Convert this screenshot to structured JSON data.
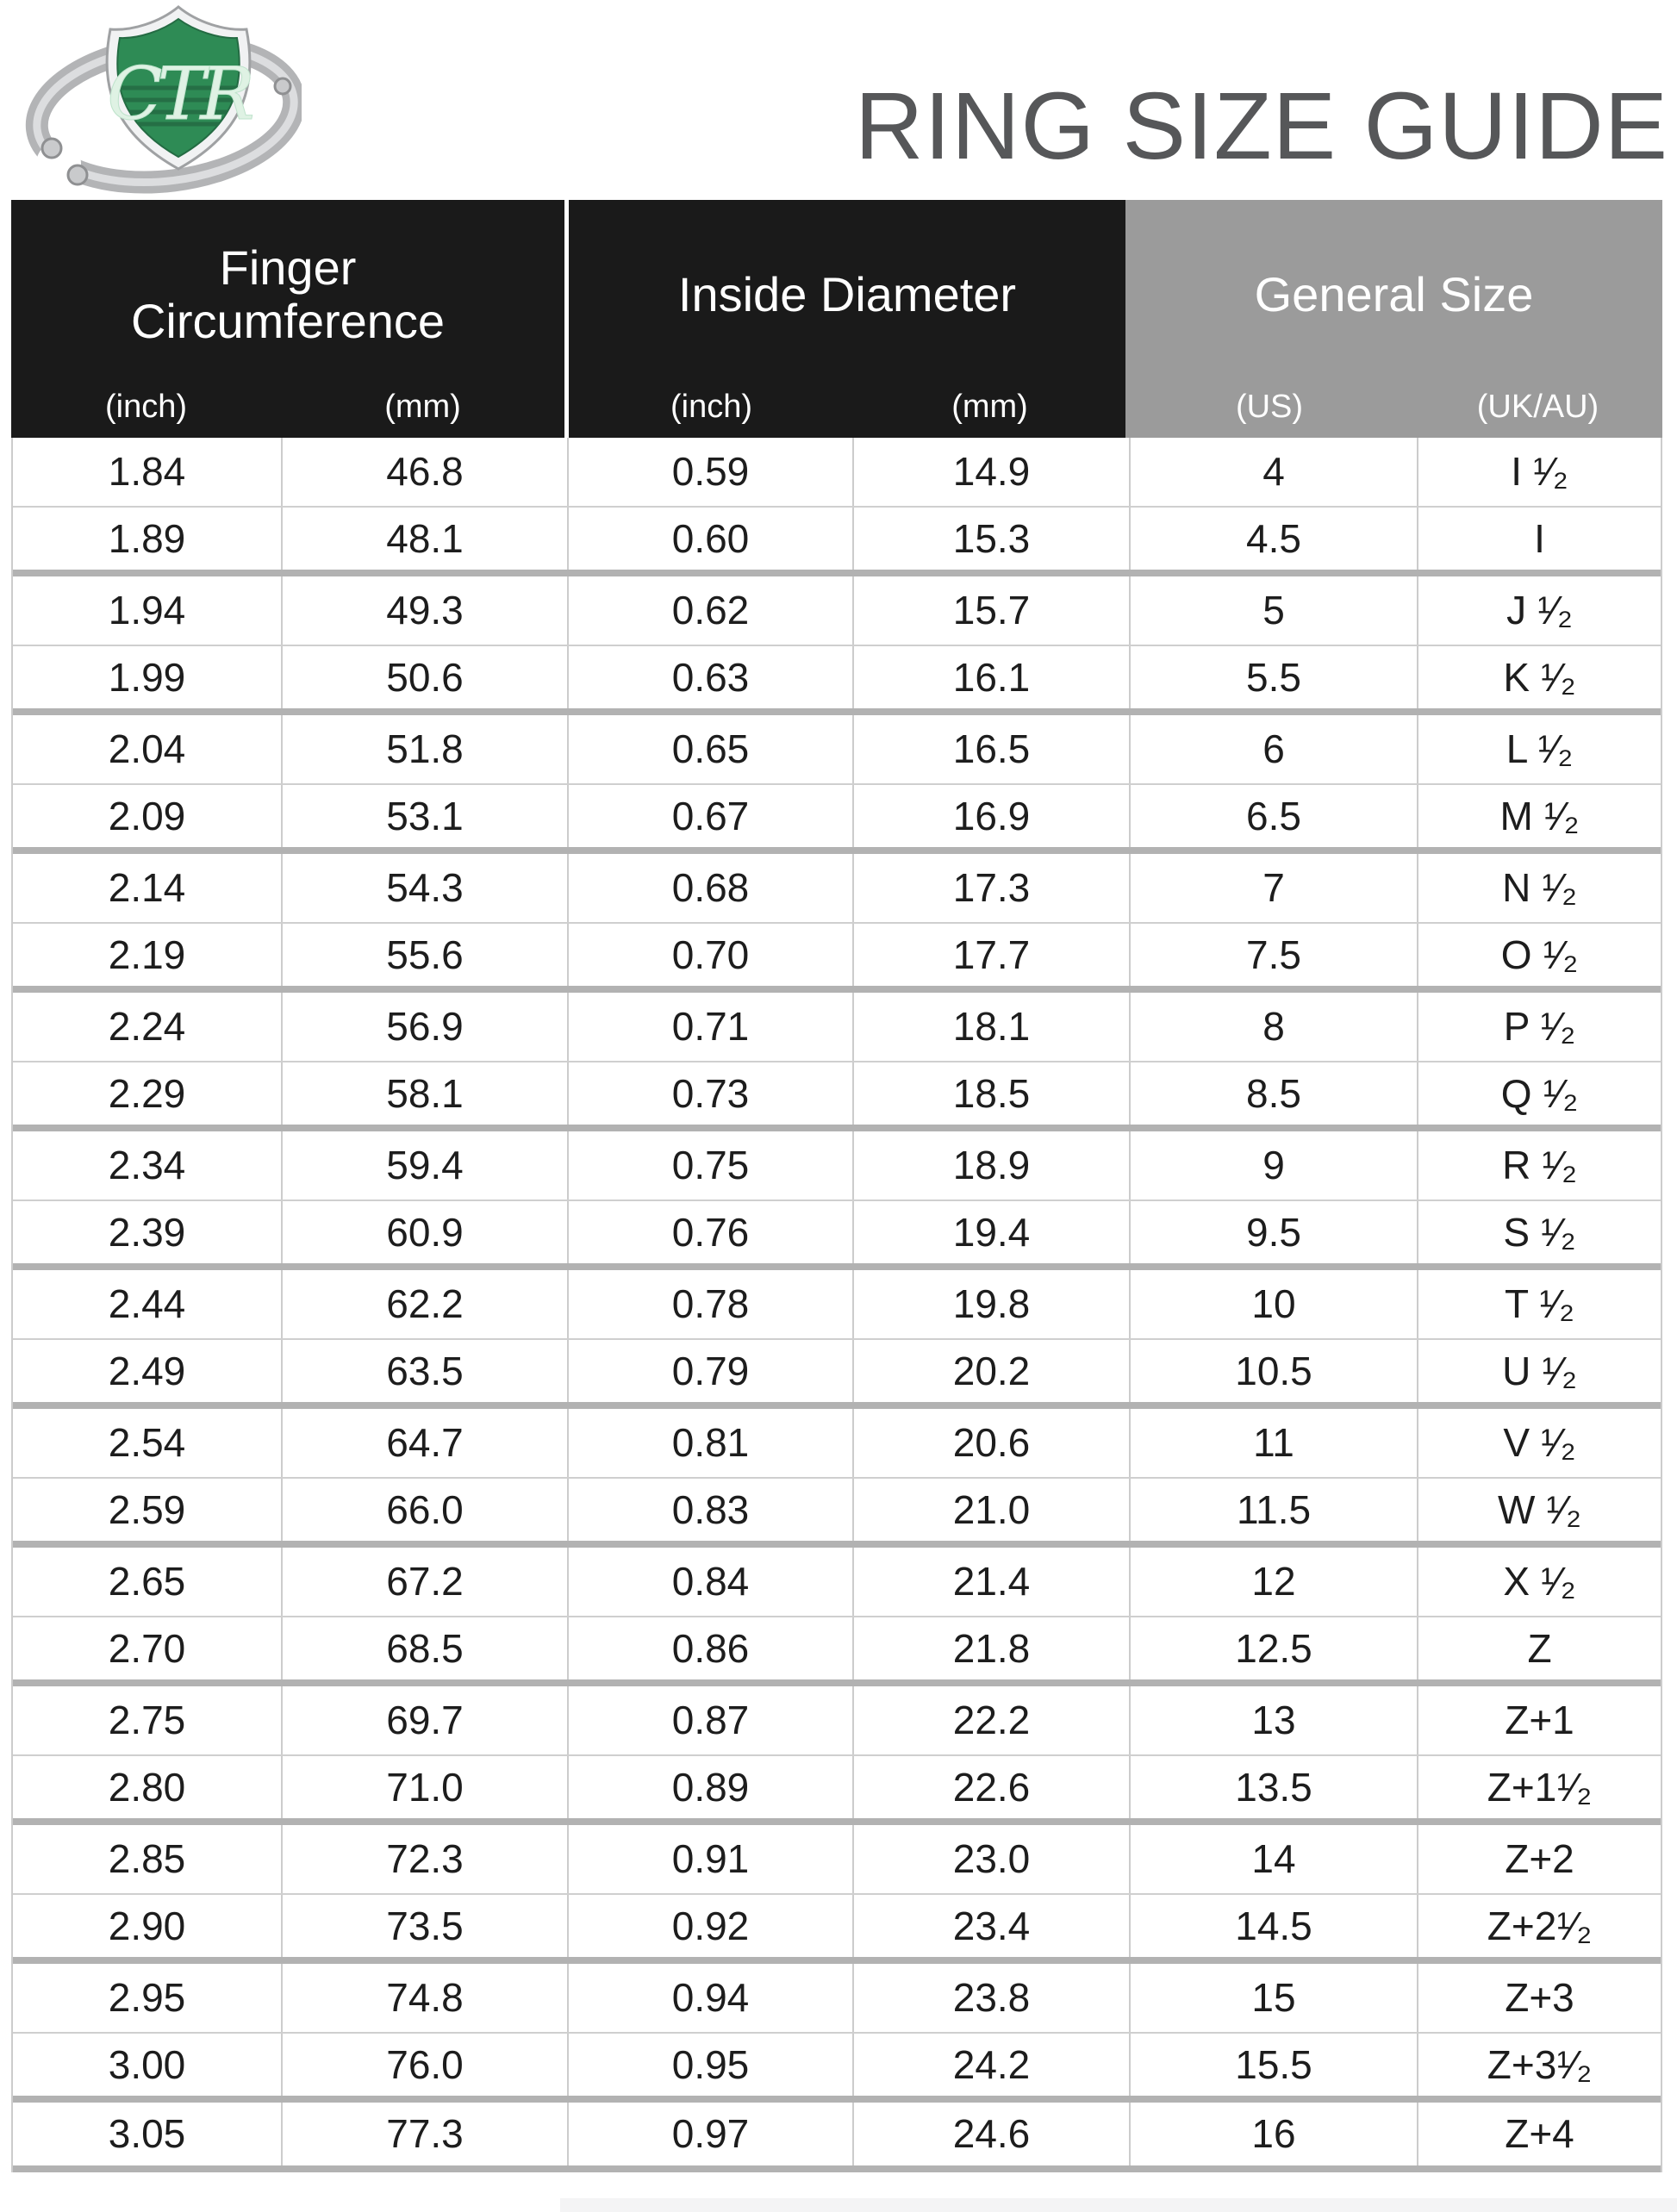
{
  "header": {
    "title": "RING SIZE GUIDE"
  },
  "logo": {
    "monogram": "CTR"
  },
  "colors": {
    "header_black": "#1a1a1a",
    "header_gray": "#9b9b9b",
    "title_gray": "#565759",
    "shield_green": "#2e8b55",
    "line_thin": "#cfcfcf",
    "line_thick": "#b2b2b2"
  },
  "table": {
    "groups": [
      {
        "label": "Finger\nCircumference",
        "units": [
          "(inch)",
          "(mm)"
        ],
        "bg": "#1a1a1a"
      },
      {
        "label": "Inside Diameter",
        "units": [
          "(inch)",
          "(mm)"
        ],
        "bg": "#1a1a1a"
      },
      {
        "label": "General Size",
        "units": [
          "(US)",
          "(UK/AU)"
        ],
        "bg": "#9b9b9b"
      }
    ],
    "columns": [
      "circumference-inch",
      "circumference-mm",
      "diameter-inch",
      "diameter-mm",
      "size-us",
      "size-uk-au"
    ],
    "rows": [
      [
        "1.84",
        "46.8",
        "0.59",
        "14.9",
        "4",
        "I ¹⁄₂"
      ],
      [
        "1.89",
        "48.1",
        "0.60",
        "15.3",
        "4.5",
        "I"
      ],
      [
        "1.94",
        "49.3",
        "0.62",
        "15.7",
        "5",
        "J ¹⁄₂"
      ],
      [
        "1.99",
        "50.6",
        "0.63",
        "16.1",
        "5.5",
        "K ¹⁄₂"
      ],
      [
        "2.04",
        "51.8",
        "0.65",
        "16.5",
        "6",
        "L ¹⁄₂"
      ],
      [
        "2.09",
        "53.1",
        "0.67",
        "16.9",
        "6.5",
        "M ¹⁄₂"
      ],
      [
        "2.14",
        "54.3",
        "0.68",
        "17.3",
        "7",
        "N ¹⁄₂"
      ],
      [
        "2.19",
        "55.6",
        "0.70",
        "17.7",
        "7.5",
        "O ¹⁄₂"
      ],
      [
        "2.24",
        "56.9",
        "0.71",
        "18.1",
        "8",
        "P ¹⁄₂"
      ],
      [
        "2.29",
        "58.1",
        "0.73",
        "18.5",
        "8.5",
        "Q ¹⁄₂"
      ],
      [
        "2.34",
        "59.4",
        "0.75",
        "18.9",
        "9",
        "R ¹⁄₂"
      ],
      [
        "2.39",
        "60.9",
        "0.76",
        "19.4",
        "9.5",
        "S ¹⁄₂"
      ],
      [
        "2.44",
        "62.2",
        "0.78",
        "19.8",
        "10",
        "T ¹⁄₂"
      ],
      [
        "2.49",
        "63.5",
        "0.79",
        "20.2",
        "10.5",
        "U ¹⁄₂"
      ],
      [
        "2.54",
        "64.7",
        "0.81",
        "20.6",
        "11",
        "V ¹⁄₂"
      ],
      [
        "2.59",
        "66.0",
        "0.83",
        "21.0",
        "11.5",
        "W ¹⁄₂"
      ],
      [
        "2.65",
        "67.2",
        "0.84",
        "21.4",
        "12",
        "X ¹⁄₂"
      ],
      [
        "2.70",
        "68.5",
        "0.86",
        "21.8",
        "12.5",
        "Z"
      ],
      [
        "2.75",
        "69.7",
        "0.87",
        "22.2",
        "13",
        "Z+1"
      ],
      [
        "2.80",
        "71.0",
        "0.89",
        "22.6",
        "13.5",
        "Z+1¹⁄₂"
      ],
      [
        "2.85",
        "72.3",
        "0.91",
        "23.0",
        "14",
        "Z+2"
      ],
      [
        "2.90",
        "73.5",
        "0.92",
        "23.4",
        "14.5",
        "Z+2¹⁄₂"
      ],
      [
        "2.95",
        "74.8",
        "0.94",
        "23.8",
        "15",
        "Z+3"
      ],
      [
        "3.00",
        "76.0",
        "0.95",
        "24.2",
        "15.5",
        "Z+3¹⁄₂"
      ],
      [
        "3.05",
        "77.3",
        "0.97",
        "24.6",
        "16",
        "Z+4"
      ]
    ]
  }
}
